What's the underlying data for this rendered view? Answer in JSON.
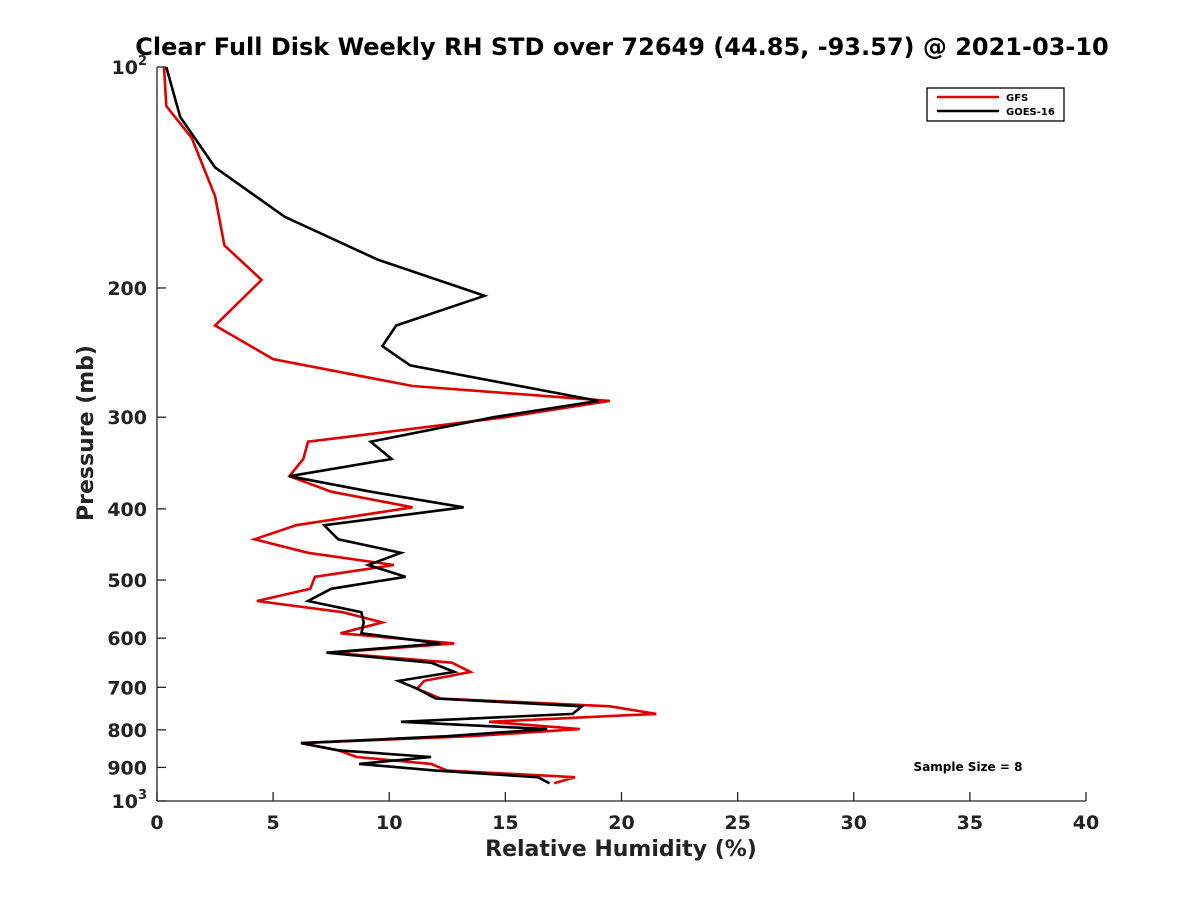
{
  "chart_data": {
    "type": "line",
    "title": "Clear Full Disk Weekly RH STD over 72649 (44.85, -93.57) @ 2021-03-10",
    "xlabel": "Relative Humidity (%)",
    "ylabel": "Pressure (mb)",
    "xlim": [
      0,
      40
    ],
    "ylim": [
      100,
      1000
    ],
    "y_scale": "log",
    "y_reversed": true,
    "x_ticks": [
      "0",
      "5",
      "10",
      "15",
      "20",
      "25",
      "30",
      "35",
      "40"
    ],
    "y_ticks": [
      {
        "base": "10",
        "exp": "2",
        "value": 100
      },
      {
        "label": "200",
        "value": 200
      },
      {
        "label": "300",
        "value": 300
      },
      {
        "label": "400",
        "value": 400
      },
      {
        "label": "500",
        "value": 500
      },
      {
        "label": "600",
        "value": 600
      },
      {
        "label": "700",
        "value": 700
      },
      {
        "label": "800",
        "value": 800
      },
      {
        "label": "900",
        "value": 900
      },
      {
        "base": "10",
        "exp": "3",
        "value": 1000
      }
    ],
    "legend_position": "top-right",
    "grid": false,
    "annotation": "Sample Size = 8",
    "series": [
      {
        "name": "GFS",
        "color": "#e00000",
        "points": [
          [
            0.3,
            100
          ],
          [
            0.4,
            113
          ],
          [
            1.5,
            125
          ],
          [
            2.5,
            150
          ],
          [
            2.9,
            175
          ],
          [
            4.5,
            195
          ],
          [
            2.5,
            225
          ],
          [
            5,
            250
          ],
          [
            11,
            272
          ],
          [
            19.5,
            285
          ],
          [
            15,
            300
          ],
          [
            6.5,
            324
          ],
          [
            6.3,
            342
          ],
          [
            5.7,
            361
          ],
          [
            7.5,
            379
          ],
          [
            11,
            398
          ],
          [
            6,
            421
          ],
          [
            4.2,
            440
          ],
          [
            6.5,
            459
          ],
          [
            10.2,
            477
          ],
          [
            6.8,
            495
          ],
          [
            6.6,
            514
          ],
          [
            4.3,
            534
          ],
          [
            8,
            553
          ],
          [
            9.7,
            571
          ],
          [
            7.9,
            591
          ],
          [
            12.8,
            610
          ],
          [
            7.5,
            628
          ],
          [
            12.7,
            648
          ],
          [
            13.5,
            667
          ],
          [
            11.5,
            686
          ],
          [
            11.2,
            703
          ],
          [
            12.2,
            725
          ],
          [
            19.5,
            743
          ],
          [
            21.5,
            761
          ],
          [
            14.3,
            780
          ],
          [
            18.2,
            798
          ],
          [
            13.5,
            816
          ],
          [
            6.2,
            834
          ],
          [
            7.8,
            853
          ],
          [
            8.6,
            871
          ],
          [
            11.8,
            890
          ],
          [
            12.5,
            909
          ],
          [
            18,
            928
          ],
          [
            17.1,
            946
          ]
        ]
      },
      {
        "name": "GOES-16",
        "color": "#000000",
        "points": [
          [
            0.4,
            100
          ],
          [
            1,
            117
          ],
          [
            2.5,
            137
          ],
          [
            5.5,
            160
          ],
          [
            9.5,
            183
          ],
          [
            14.1,
            205
          ],
          [
            10.3,
            225
          ],
          [
            9.7,
            240
          ],
          [
            10.9,
            255
          ],
          [
            19,
            285
          ],
          [
            14.5,
            300
          ],
          [
            9.2,
            324
          ],
          [
            10.1,
            342
          ],
          [
            5.7,
            361
          ],
          [
            9.2,
            379
          ],
          [
            13.2,
            398
          ],
          [
            7.2,
            421
          ],
          [
            7.8,
            440
          ],
          [
            10.5,
            459
          ],
          [
            9.1,
            477
          ],
          [
            10.7,
            495
          ],
          [
            7.5,
            514
          ],
          [
            6.5,
            534
          ],
          [
            8.8,
            553
          ],
          [
            8.9,
            571
          ],
          [
            8.8,
            591
          ],
          [
            12.2,
            610
          ],
          [
            7.3,
            628
          ],
          [
            11.8,
            648
          ],
          [
            12.8,
            667
          ],
          [
            10.4,
            686
          ],
          [
            11.2,
            703
          ],
          [
            12,
            725
          ],
          [
            18.3,
            743
          ],
          [
            17.9,
            761
          ],
          [
            10.5,
            780
          ],
          [
            16.8,
            798
          ],
          [
            12.5,
            816
          ],
          [
            6.2,
            834
          ],
          [
            7.8,
            853
          ],
          [
            11.8,
            871
          ],
          [
            8.7,
            890
          ],
          [
            12,
            909
          ],
          [
            16.4,
            928
          ],
          [
            16.9,
            946
          ]
        ]
      }
    ]
  }
}
